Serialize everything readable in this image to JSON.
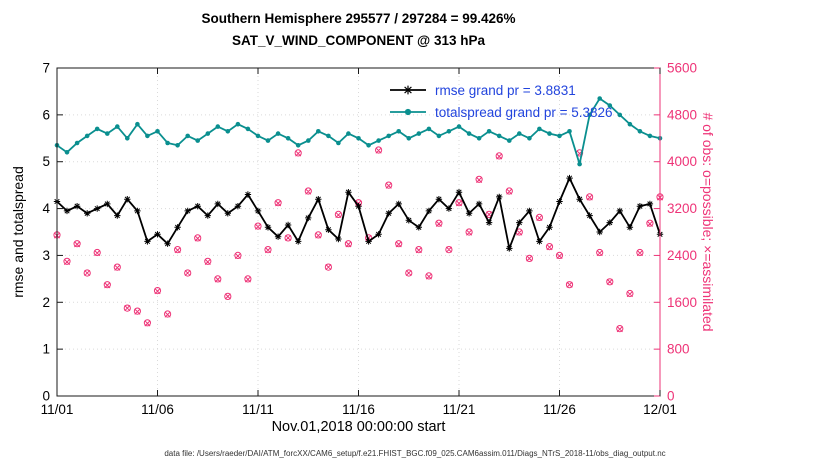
{
  "title": {
    "line1": "Southern Hemisphere 295577 / 297284 = 99.426%",
    "line2": "SAT_V_WIND_COMPONENT @ 313 hPa"
  },
  "axes": {
    "x": {
      "label": "Nov.01,2018 00:00:00 start",
      "range": [
        0,
        30
      ],
      "tick_positions": [
        0,
        5,
        10,
        15,
        20,
        25,
        30
      ],
      "tick_labels": [
        "11/01",
        "11/06",
        "11/11",
        "11/16",
        "11/21",
        "11/26",
        "12/01"
      ]
    },
    "left": {
      "label": "rmse and totalspread",
      "range": [
        0,
        7
      ],
      "ticks": [
        0,
        1,
        2,
        3,
        4,
        5,
        6,
        7
      ]
    },
    "right": {
      "label": "# of obs: o=possible; ×=assimilated",
      "range": [
        0,
        5600
      ],
      "ticks": [
        0,
        800,
        1600,
        2400,
        3200,
        4000,
        4800,
        5600
      ]
    }
  },
  "legend": {
    "items": [
      {
        "label": "rmse grand pr = 3.8831",
        "series": "rmse"
      },
      {
        "label": "totalspread grand pr = 5.3826",
        "series": "totalspread"
      }
    ]
  },
  "footer": {
    "text": "data file: /Users/raeder/DAI/ATM_forcXX/CAM6_setup/f.e21.FHIST_BGC.f09_025.CAM6assim.011/Diags_NTrS_2018-11/obs_diag_output.nc"
  },
  "colors": {
    "rmse": "#000000",
    "totalspread": "#0a8f8f",
    "obs": "#ee3377",
    "legend_text": "#2244dd",
    "grid": "#dadada",
    "axis": "#1a1a1a"
  },
  "chart_data": {
    "type": "line",
    "title": "Southern Hemisphere 295577 / 297284 = 99.426% | SAT_V_WIND_COMPONENT @ 313 hPa",
    "xlabel": "Nov.01,2018 00:00:00 start",
    "left_ylabel": "rmse and totalspread",
    "right_ylabel": "# of obs: o=possible; ×=assimilated",
    "x_range": [
      0,
      30
    ],
    "left_ylim": [
      0,
      7
    ],
    "right_ylim": [
      0,
      5600
    ],
    "grid": true,
    "legend_position": "top-right-inside",
    "x_days_after_nov01": [
      0,
      0.5,
      1,
      1.5,
      2,
      2.5,
      3,
      3.5,
      4,
      4.5,
      5,
      5.5,
      6,
      6.5,
      7,
      7.5,
      8,
      8.5,
      9,
      9.5,
      10,
      10.5,
      11,
      11.5,
      12,
      12.5,
      13,
      13.5,
      14,
      14.5,
      15,
      15.5,
      16,
      16.5,
      17,
      17.5,
      18,
      18.5,
      19,
      19.5,
      20,
      20.5,
      21,
      21.5,
      22,
      22.5,
      23,
      23.5,
      24,
      24.5,
      25,
      25.5,
      26,
      26.5,
      27,
      27.5,
      28,
      28.5,
      29,
      29.5,
      30
    ],
    "series": [
      {
        "name": "rmse",
        "axis": "left",
        "marker": "asterisk",
        "line": true,
        "grand_mean": 3.8831,
        "values": [
          4.15,
          3.95,
          4.05,
          3.9,
          4.0,
          4.1,
          3.85,
          4.2,
          3.95,
          3.3,
          3.45,
          3.25,
          3.6,
          3.95,
          4.05,
          3.85,
          4.1,
          3.9,
          4.05,
          4.3,
          3.95,
          3.6,
          3.4,
          3.65,
          3.3,
          3.8,
          4.2,
          3.55,
          3.35,
          4.35,
          4.05,
          3.3,
          3.45,
          3.9,
          4.1,
          3.75,
          3.6,
          3.95,
          4.2,
          4.0,
          4.35,
          3.9,
          4.1,
          3.7,
          4.25,
          3.15,
          3.7,
          3.95,
          3.3,
          3.6,
          4.15,
          4.65,
          4.2,
          3.85,
          3.5,
          3.7,
          3.95,
          3.6,
          4.05,
          4.1,
          3.45
        ]
      },
      {
        "name": "totalspread",
        "axis": "left",
        "marker": "dot",
        "line": true,
        "grand_mean": 5.3826,
        "values": [
          5.35,
          5.2,
          5.4,
          5.55,
          5.7,
          5.6,
          5.75,
          5.5,
          5.8,
          5.55,
          5.65,
          5.4,
          5.35,
          5.55,
          5.45,
          5.6,
          5.75,
          5.65,
          5.8,
          5.7,
          5.55,
          5.45,
          5.6,
          5.5,
          5.35,
          5.45,
          5.65,
          5.55,
          5.4,
          5.6,
          5.5,
          5.35,
          5.45,
          5.55,
          5.65,
          5.5,
          5.6,
          5.7,
          5.55,
          5.65,
          5.75,
          5.6,
          5.5,
          5.65,
          5.55,
          5.45,
          5.6,
          5.5,
          5.7,
          5.6,
          5.55,
          5.65,
          4.95,
          6.0,
          6.35,
          6.2,
          6.0,
          5.8,
          5.65,
          5.55,
          5.5
        ]
      },
      {
        "name": "obs_possible",
        "axis": "right",
        "marker": "o",
        "line": false,
        "total": 297284,
        "values": [
          2750,
          2300,
          2600,
          2100,
          2450,
          1900,
          2200,
          1500,
          1450,
          1250,
          1800,
          1400,
          2500,
          2100,
          2700,
          2300,
          2000,
          1700,
          2400,
          2000,
          2900,
          2500,
          3300,
          2700,
          4150,
          3500,
          2750,
          2200,
          3100,
          2600,
          3300,
          2700,
          4200,
          3600,
          2600,
          2100,
          2500,
          2050,
          2950,
          2500,
          3300,
          2800,
          3700,
          3100,
          4100,
          3500,
          2800,
          2350,
          3050,
          2550,
          2400,
          1900,
          4150,
          3400,
          2450,
          1950,
          1150,
          1750,
          2450,
          2950,
          3400
        ]
      },
      {
        "name": "obs_assimilated",
        "axis": "right",
        "marker": "x",
        "line": false,
        "total": 295577,
        "values": [
          2740,
          2290,
          2590,
          2100,
          2440,
          1890,
          2190,
          1500,
          1440,
          1240,
          1790,
          1390,
          2490,
          2100,
          2690,
          2290,
          1990,
          1700,
          2390,
          1990,
          2890,
          2490,
          3290,
          2700,
          4140,
          3490,
          2740,
          2200,
          3090,
          2590,
          3290,
          2700,
          4190,
          3590,
          2590,
          2100,
          2490,
          2040,
          2940,
          2500,
          3290,
          2790,
          3690,
          3100,
          4090,
          3490,
          2790,
          2350,
          3040,
          2540,
          2390,
          1900,
          4140,
          3390,
          2440,
          1950,
          1140,
          1740,
          2440,
          2940,
          3390
        ]
      }
    ]
  }
}
